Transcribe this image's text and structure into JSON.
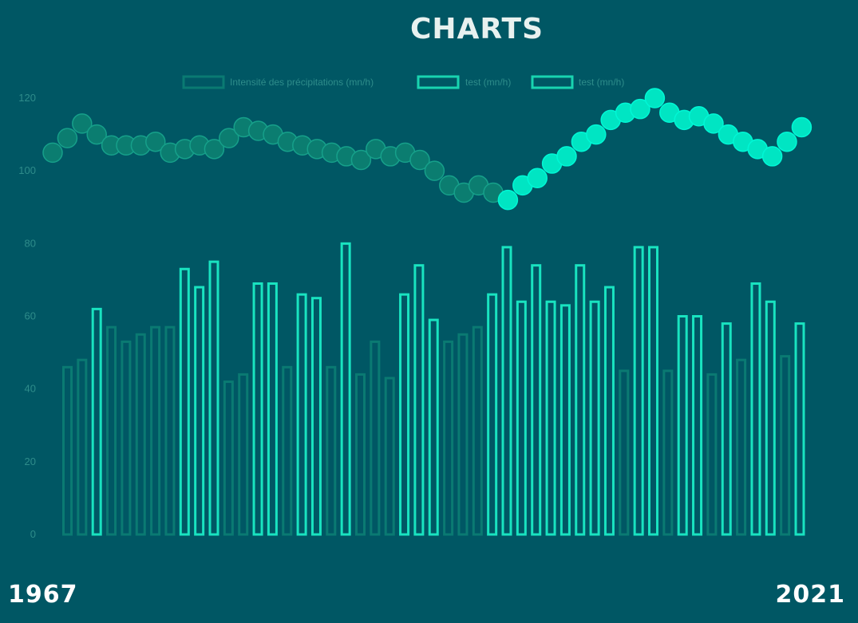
{
  "page": {
    "title": "CHARTS",
    "year_start": "1967",
    "year_end": "2021"
  },
  "colors": {
    "background": "#005764",
    "bar_dim": "#0a7a72",
    "bar_bright": "#19e3c0",
    "point_dim": "#0b7d70",
    "point_dim_stroke": "#16a08a",
    "point_bright": "#00e5c3",
    "point_bright_stroke": "#00f7d5",
    "tick_text": "#2e8c8a"
  },
  "chart_data": {
    "type": "bar",
    "ylim": [
      0,
      120
    ],
    "yticks": [
      0,
      20,
      40,
      60,
      80,
      100,
      120
    ],
    "legend": {
      "position": "top",
      "items": [
        {
          "label": "Intensité des précipitations (mn/h)",
          "color": "#0a7a72"
        },
        {
          "label": "test (mn/h)",
          "color": "#19d4b0"
        },
        {
          "label": "test (mn/h)",
          "color": "#19d4b0"
        }
      ]
    },
    "bars": {
      "values": [
        46,
        48,
        62,
        57,
        53,
        55,
        57,
        57,
        73,
        68,
        75,
        42,
        44,
        69,
        69,
        46,
        66,
        65,
        46,
        80,
        44,
        53,
        43,
        66,
        74,
        59,
        53,
        55,
        57,
        66,
        79,
        64,
        74,
        64,
        63,
        74,
        64,
        68,
        45,
        79,
        79,
        45,
        60,
        60,
        44,
        58,
        48,
        69,
        64,
        49,
        58
      ],
      "highlight": [
        0,
        0,
        1,
        0,
        0,
        0,
        0,
        0,
        1,
        1,
        1,
        0,
        0,
        1,
        1,
        0,
        1,
        1,
        0,
        1,
        0,
        0,
        0,
        1,
        1,
        1,
        0,
        0,
        0,
        1,
        1,
        1,
        1,
        1,
        1,
        1,
        1,
        1,
        0,
        1,
        1,
        0,
        1,
        1,
        0,
        1,
        0,
        1,
        1,
        0,
        1
      ]
    },
    "line": {
      "values": [
        105,
        109,
        113,
        110,
        107,
        107,
        107,
        108,
        105,
        106,
        107,
        106,
        109,
        112,
        111,
        110,
        108,
        107,
        106,
        105,
        104,
        103,
        106,
        104,
        105,
        103,
        100,
        96,
        94,
        96,
        94,
        92,
        96,
        98,
        102,
        104,
        108,
        110,
        114,
        116,
        117,
        120,
        116,
        114,
        115,
        113,
        110,
        108,
        106,
        104,
        108,
        112
      ],
      "highlight_from_index": 31
    }
  }
}
